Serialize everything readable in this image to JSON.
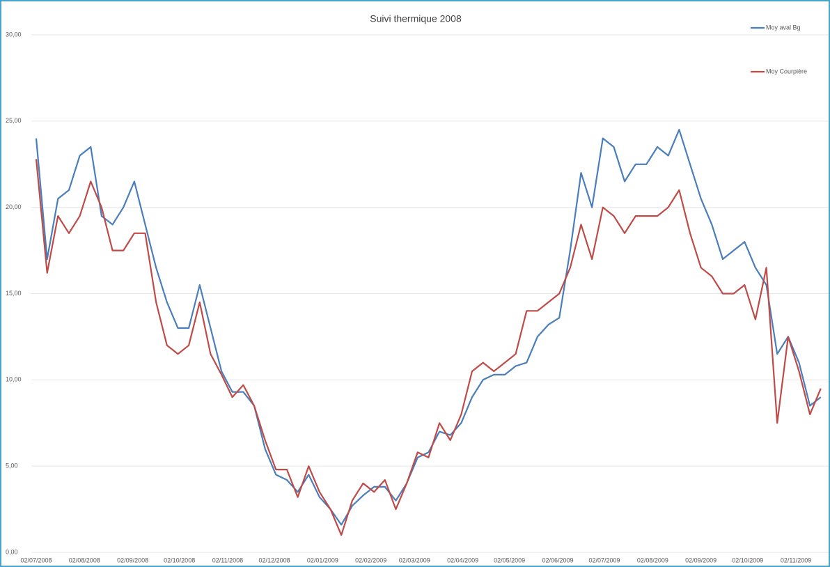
{
  "chart_data": {
    "type": "line",
    "title": "Suivi thermique 2008",
    "x": [
      "02/07/2008",
      "09/07/2008",
      "16/07/2008",
      "23/07/2008",
      "30/07/2008",
      "06/08/2008",
      "13/08/2008",
      "20/08/2008",
      "27/08/2008",
      "03/09/2008",
      "10/09/2008",
      "17/09/2008",
      "24/09/2008",
      "01/10/2008",
      "08/10/2008",
      "15/10/2008",
      "22/10/2008",
      "29/10/2008",
      "05/11/2008",
      "12/11/2008",
      "19/11/2008",
      "26/11/2008",
      "03/12/2008",
      "10/12/2008",
      "17/12/2008",
      "24/12/2008",
      "31/12/2008",
      "07/01/2009",
      "14/01/2009",
      "21/01/2009",
      "28/01/2009",
      "04/02/2009",
      "11/02/2009",
      "18/02/2009",
      "25/02/2009",
      "04/03/2009",
      "11/03/2009",
      "18/03/2009",
      "25/03/2009",
      "01/04/2009",
      "08/04/2009",
      "15/04/2009",
      "22/04/2009",
      "29/04/2009",
      "06/05/2009",
      "13/05/2009",
      "20/05/2009",
      "27/05/2009",
      "03/06/2009",
      "10/06/2009",
      "17/06/2009",
      "24/06/2009",
      "01/07/2009",
      "08/07/2009",
      "15/07/2009",
      "22/07/2009",
      "29/07/2009",
      "05/08/2009",
      "12/08/2009",
      "19/08/2009",
      "26/08/2009",
      "02/09/2009",
      "09/09/2009",
      "16/09/2009",
      "23/09/2009",
      "30/09/2009",
      "07/10/2009",
      "14/10/2009",
      "21/10/2009",
      "28/10/2009",
      "04/11/2009",
      "11/11/2009",
      "18/11/2009"
    ],
    "series": [
      {
        "name": "Moy aval Bg",
        "color": "#4a7ebb",
        "values": [
          24.0,
          17.0,
          20.5,
          21.0,
          23.0,
          23.5,
          19.5,
          19.0,
          20.0,
          21.5,
          19.0,
          16.5,
          14.5,
          13.0,
          13.0,
          15.5,
          13.0,
          10.5,
          9.3,
          9.3,
          8.5,
          6.0,
          4.5,
          4.2,
          3.5,
          4.5,
          3.2,
          2.5,
          1.6,
          2.7,
          3.3,
          3.8,
          3.8,
          3.0,
          4.0,
          5.5,
          5.8,
          7.0,
          6.8,
          7.5,
          9.0,
          10.0,
          10.3,
          10.3,
          10.8,
          11.0,
          12.5,
          13.2,
          13.6,
          17.5,
          22.0,
          20.0,
          24.0,
          23.5,
          21.5,
          22.5,
          22.5,
          23.5,
          23.0,
          24.5,
          22.5,
          20.5,
          19.0,
          17.0,
          17.5,
          18.0,
          16.5,
          15.5,
          11.5,
          12.5,
          11.0,
          8.5,
          9.0
        ]
      },
      {
        "name": "Moy Courpière",
        "color": "#be4b48",
        "values": [
          22.8,
          16.2,
          19.5,
          18.5,
          19.5,
          21.5,
          20.0,
          17.5,
          17.5,
          18.5,
          18.5,
          14.5,
          12.0,
          11.5,
          12.0,
          14.5,
          11.5,
          10.3,
          9.0,
          9.7,
          8.5,
          6.5,
          4.8,
          4.8,
          3.2,
          5.0,
          3.5,
          2.5,
          1.0,
          3.0,
          4.0,
          3.5,
          4.2,
          2.5,
          4.0,
          5.8,
          5.5,
          7.5,
          6.5,
          8.0,
          10.5,
          11.0,
          10.5,
          11.0,
          11.5,
          14.0,
          14.0,
          14.5,
          15.0,
          16.5,
          19.0,
          17.0,
          20.0,
          19.5,
          18.5,
          19.5,
          19.5,
          19.5,
          20.0,
          21.0,
          18.5,
          16.5,
          16.0,
          15.0,
          15.0,
          15.5,
          13.5,
          16.5,
          7.5,
          12.5,
          10.5,
          8.0,
          9.5
        ]
      }
    ],
    "xlim": [
      "02/07/2008",
      "23/11/2009"
    ],
    "xticks": [
      "02/07/2008",
      "02/08/2008",
      "02/09/2008",
      "02/10/2008",
      "02/11/2008",
      "02/12/2008",
      "02/01/2009",
      "02/02/2009",
      "02/03/2009",
      "02/04/2009",
      "02/05/2009",
      "02/06/2009",
      "02/07/2009",
      "02/08/2009",
      "02/09/2009",
      "02/10/2009",
      "02/11/2009"
    ],
    "ylim": [
      0,
      30
    ],
    "yticks": [
      {
        "value": 0,
        "label": "0,00"
      },
      {
        "value": 5,
        "label": "5,00"
      },
      {
        "value": 10,
        "label": "10,00"
      },
      {
        "value": 15,
        "label": "15,00"
      },
      {
        "value": 20,
        "label": "20,00"
      },
      {
        "value": 25,
        "label": "25,00"
      },
      {
        "value": 30,
        "label": "30,00"
      }
    ],
    "grid": true
  }
}
